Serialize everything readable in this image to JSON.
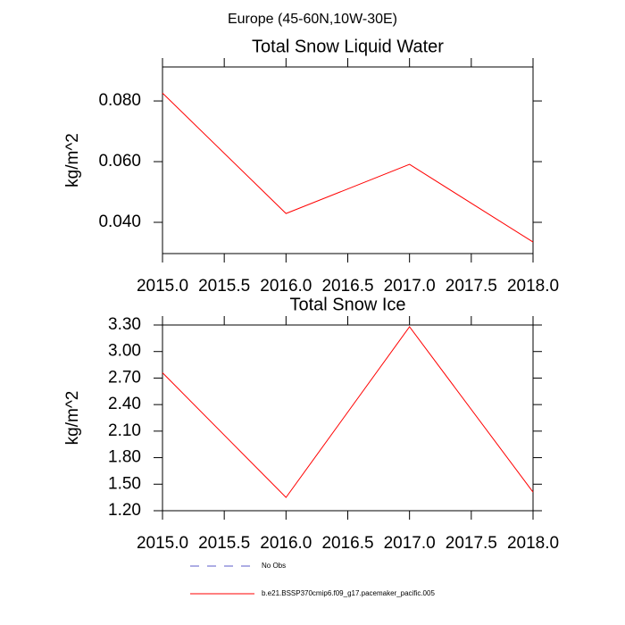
{
  "title": "Europe (45-60N,10W-30E)",
  "chart_data": [
    {
      "type": "line",
      "title": "Total Snow Liquid Water",
      "y_label": "kg/m^2",
      "x": [
        2015,
        2016,
        2017,
        2018
      ],
      "series": [
        {
          "color": "#ff0000",
          "values": [
            0.0826,
            0.0429,
            0.0591,
            0.0335
          ]
        }
      ],
      "xlim": [
        2015,
        2018
      ],
      "xticks": [
        {
          "value": 2015,
          "label": "2015.0"
        },
        {
          "value": 2015.5,
          "label": "2015.5"
        },
        {
          "value": 2016,
          "label": "2016.0"
        },
        {
          "value": 2016.5,
          "label": "2016.5"
        },
        {
          "value": 2017,
          "label": "2017.0"
        },
        {
          "value": 2017.5,
          "label": "2017.5"
        },
        {
          "value": 2018,
          "label": "2018.0"
        }
      ],
      "ylim": [
        0.0297,
        0.0912
      ],
      "yticks": [
        {
          "value": 0.04,
          "label": "0.040"
        },
        {
          "value": 0.06,
          "label": "0.060"
        },
        {
          "value": 0.08,
          "label": "0.080"
        }
      ]
    },
    {
      "type": "line",
      "title": "Total Snow Ice",
      "y_label": "kg/m^2",
      "x": [
        2015,
        2016,
        2017,
        2018
      ],
      "series": [
        {
          "color": "#ff0000",
          "values": [
            2.76,
            1.35,
            3.28,
            1.41
          ]
        }
      ],
      "xlim": [
        2015,
        2018
      ],
      "xticks": [
        {
          "value": 2015,
          "label": "2015.0"
        },
        {
          "value": 2015.5,
          "label": "2015.5"
        },
        {
          "value": 2016,
          "label": "2016.0"
        },
        {
          "value": 2016.5,
          "label": "2016.5"
        },
        {
          "value": 2017,
          "label": "2017.0"
        },
        {
          "value": 2017.5,
          "label": "2017.5"
        },
        {
          "value": 2018,
          "label": "2018.0"
        }
      ],
      "ylim": [
        1.2,
        3.3
      ],
      "yticks": [
        {
          "value": 1.2,
          "label": "1.20"
        },
        {
          "value": 1.5,
          "label": "1.50"
        },
        {
          "value": 1.8,
          "label": "1.80"
        },
        {
          "value": 2.1,
          "label": "2.10"
        },
        {
          "value": 2.4,
          "label": "2.40"
        },
        {
          "value": 2.7,
          "label": "2.70"
        },
        {
          "value": 3.0,
          "label": "3.00"
        },
        {
          "value": 3.3,
          "label": "3.30"
        }
      ]
    }
  ],
  "legend": [
    {
      "label": "No Obs",
      "color": "#5b5bc8",
      "dashed": true
    },
    {
      "label": "b.e21.BSSP370cmip6.f09_g17.pacemaker_pacific.005",
      "color": "#ff0000",
      "dashed": false
    }
  ]
}
